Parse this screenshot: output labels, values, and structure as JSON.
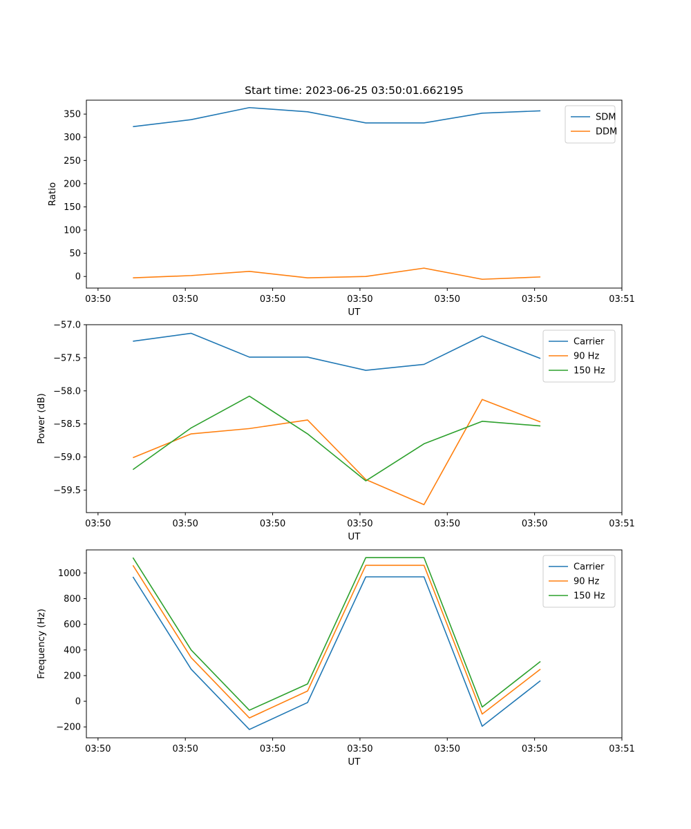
{
  "chart_data": [
    {
      "type": "line",
      "title": "Start time: 2023-06-25 03:50:01.662195",
      "xlabel": "UT",
      "ylabel": "Ratio",
      "x": [
        1,
        2,
        3,
        4,
        5,
        6,
        7,
        8
      ],
      "xlim": [
        0.2,
        9.4
      ],
      "x_ticks": [
        0.4,
        1.9,
        3.4,
        4.9,
        6.4,
        7.9,
        9.4
      ],
      "x_tick_labels": [
        "03:50",
        "03:50",
        "03:50",
        "03:50",
        "03:50",
        "03:50",
        "03:51"
      ],
      "ylim": [
        -25,
        380
      ],
      "y_ticks": [
        0,
        50,
        100,
        150,
        200,
        250,
        300,
        350
      ],
      "y_tick_labels": [
        "0",
        "50",
        "100",
        "150",
        "200",
        "250",
        "300",
        "350"
      ],
      "grid": false,
      "legend_position": "top-right",
      "series": [
        {
          "name": "SDM",
          "color": "#1f77b4",
          "values": [
            323,
            338,
            364,
            355,
            331,
            331,
            352,
            357
          ]
        },
        {
          "name": "DDM",
          "color": "#ff7f0e",
          "values": [
            -3,
            2,
            11,
            -3,
            0,
            18,
            -6,
            -1
          ]
        }
      ]
    },
    {
      "type": "line",
      "title": "",
      "xlabel": "UT",
      "ylabel": "Power (dB)",
      "x": [
        1,
        2,
        3,
        4,
        5,
        6,
        7,
        8
      ],
      "xlim": [
        0.2,
        9.4
      ],
      "x_ticks": [
        0.4,
        1.9,
        3.4,
        4.9,
        6.4,
        7.9,
        9.4
      ],
      "x_tick_labels": [
        "03:50",
        "03:50",
        "03:50",
        "03:50",
        "03:50",
        "03:50",
        "03:51"
      ],
      "ylim": [
        -59.84,
        -57.0
      ],
      "y_ticks": [
        -57.0,
        -57.5,
        -58.0,
        -58.5,
        -59.0,
        -59.5
      ],
      "y_tick_labels": [
        "−57.0",
        "−57.5",
        "−58.0",
        "−58.5",
        "−59.0",
        "−59.5"
      ],
      "grid": false,
      "legend_position": "top-right",
      "series": [
        {
          "name": "Carrier",
          "color": "#1f77b4",
          "values": [
            -57.25,
            -57.13,
            -57.49,
            -57.49,
            -57.69,
            -57.6,
            -57.17,
            -57.51
          ]
        },
        {
          "name": "90 Hz",
          "color": "#ff7f0e",
          "values": [
            -59.01,
            -58.65,
            -58.57,
            -58.44,
            -59.34,
            -59.72,
            -58.13,
            -58.47
          ]
        },
        {
          "name": "150 Hz",
          "color": "#2ca02c",
          "values": [
            -59.19,
            -58.56,
            -58.08,
            -58.65,
            -59.36,
            -58.8,
            -58.46,
            -58.53
          ]
        }
      ]
    },
    {
      "type": "line",
      "title": "",
      "xlabel": "UT",
      "ylabel": "Frequency (Hz)",
      "x": [
        1,
        2,
        3,
        4,
        5,
        6,
        7,
        8
      ],
      "xlim": [
        0.2,
        9.4
      ],
      "x_ticks": [
        0.4,
        1.9,
        3.4,
        4.9,
        6.4,
        7.9,
        9.4
      ],
      "x_tick_labels": [
        "03:50",
        "03:50",
        "03:50",
        "03:50",
        "03:50",
        "03:50",
        "03:51"
      ],
      "ylim": [
        -285,
        1180
      ],
      "y_ticks": [
        -200,
        0,
        200,
        400,
        600,
        800,
        1000
      ],
      "y_tick_labels": [
        "−200",
        "0",
        "200",
        "400",
        "600",
        "800",
        "1000"
      ],
      "grid": false,
      "legend_position": "top-right",
      "series": [
        {
          "name": "Carrier",
          "color": "#1f77b4",
          "values": [
            970,
            250,
            -220,
            -10,
            970,
            970,
            -195,
            160
          ]
        },
        {
          "name": "90 Hz",
          "color": "#ff7f0e",
          "values": [
            1060,
            340,
            -130,
            80,
            1060,
            1060,
            -100,
            250
          ]
        },
        {
          "name": "150 Hz",
          "color": "#2ca02c",
          "values": [
            1120,
            400,
            -70,
            135,
            1120,
            1120,
            -45,
            310
          ]
        }
      ]
    }
  ]
}
